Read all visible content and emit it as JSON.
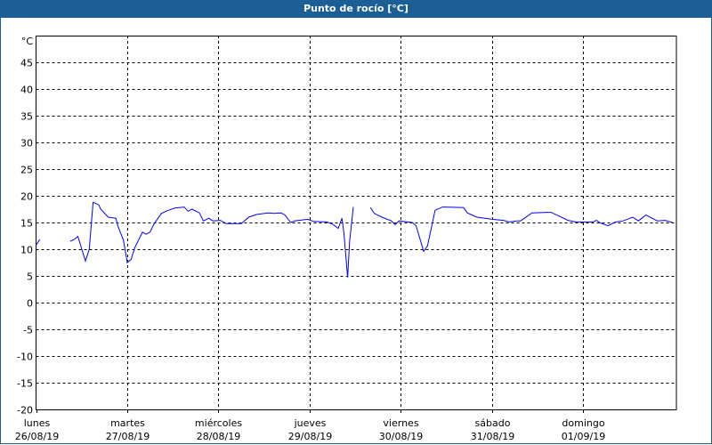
{
  "window": {
    "title": "Punto de rocío [°C]"
  },
  "colors": {
    "titlebar": "#1c5f97",
    "series": "#0000ff",
    "grid": "#000000"
  },
  "chart_data": {
    "type": "line",
    "title": "Punto de rocío [°C]",
    "ylabel": "°C",
    "ylim": [
      -20,
      50
    ],
    "yticks": [
      -20,
      -15,
      -10,
      -5,
      0,
      5,
      10,
      15,
      20,
      25,
      30,
      35,
      40,
      45
    ],
    "xlim": [
      "2019-08-26T00:00",
      "2019-09-02T00:30"
    ],
    "grid": true,
    "xticks": [
      {
        "day": "lunes",
        "date": "26/08/19",
        "at": "2019-08-26T00:00"
      },
      {
        "day": "martes",
        "date": "27/08/19",
        "at": "2019-08-27T00:00"
      },
      {
        "day": "miércoles",
        "date": "28/08/19",
        "at": "2019-08-28T00:00"
      },
      {
        "day": "jueves",
        "date": "29/08/19",
        "at": "2019-08-29T00:00"
      },
      {
        "day": "viernes",
        "date": "30/08/19",
        "at": "2019-08-30T00:00"
      },
      {
        "day": "sábado",
        "date": "31/08/19",
        "at": "2019-08-31T00:00"
      },
      {
        "day": "domingo",
        "date": "01/09/19",
        "at": "2019-09-01T00:00"
      }
    ],
    "series": [
      {
        "segments": [
          [
            [
              "2019-08-26T00:00",
              10.8
            ],
            [
              "2019-08-26T01:00",
              11.8
            ]
          ],
          [
            [
              "2019-08-26T09:00",
              11.5
            ],
            [
              "2019-08-26T10:00",
              11.8
            ],
            [
              "2019-08-26T11:00",
              12.4
            ],
            [
              "2019-08-26T13:00",
              7.8
            ],
            [
              "2019-08-26T14:00",
              10
            ],
            [
              "2019-08-26T15:00",
              18.8
            ],
            [
              "2019-08-26T16:30",
              18.3
            ],
            [
              "2019-08-26T17:00",
              17.5
            ],
            [
              "2019-08-26T19:00",
              16
            ],
            [
              "2019-08-26T21:00",
              15.8
            ],
            [
              "2019-08-26T21:30",
              14.4
            ],
            [
              "2019-08-26T23:00",
              11.7
            ],
            [
              "2019-08-27T00:00",
              7.5
            ],
            [
              "2019-08-27T01:00",
              8.1
            ],
            [
              "2019-08-27T02:00",
              10.3
            ],
            [
              "2019-08-27T04:00",
              13.2
            ],
            [
              "2019-08-27T05:00",
              12.8
            ],
            [
              "2019-08-27T06:00",
              13.2
            ],
            [
              "2019-08-27T07:00",
              14.7
            ],
            [
              "2019-08-27T09:00",
              16.7
            ],
            [
              "2019-08-27T10:30",
              17.2
            ],
            [
              "2019-08-27T12:30",
              17.7
            ],
            [
              "2019-08-27T15:00",
              17.9
            ],
            [
              "2019-08-27T16:00",
              17.1
            ],
            [
              "2019-08-27T17:00",
              17.5
            ],
            [
              "2019-08-27T19:00",
              16.8
            ],
            [
              "2019-08-27T20:00",
              15.3
            ],
            [
              "2019-08-27T21:30",
              15.8
            ],
            [
              "2019-08-27T22:30",
              15.3
            ],
            [
              "2019-08-28T00:30",
              15.4
            ],
            [
              "2019-08-28T02:00",
              14.8
            ],
            [
              "2019-08-28T04:00",
              14.8
            ],
            [
              "2019-08-28T06:00",
              14.8
            ],
            [
              "2019-08-28T08:00",
              16
            ],
            [
              "2019-08-28T10:00",
              16.5
            ],
            [
              "2019-08-28T13:00",
              16.8
            ],
            [
              "2019-08-28T14:30",
              16.7
            ],
            [
              "2019-08-28T16:30",
              16.8
            ],
            [
              "2019-08-28T17:30",
              16.4
            ],
            [
              "2019-08-28T19:00",
              15
            ],
            [
              "2019-08-28T20:00",
              15.3
            ],
            [
              "2019-08-28T23:30",
              15.6
            ],
            [
              "2019-08-29T01:00",
              15.2
            ],
            [
              "2019-08-29T04:30",
              15.1
            ],
            [
              "2019-08-29T06:00",
              14.7
            ],
            [
              "2019-08-29T07:30",
              13.9
            ],
            [
              "2019-08-29T08:30",
              15.8
            ],
            [
              "2019-08-29T09:00",
              13.1
            ],
            [
              "2019-08-29T10:00",
              4.7
            ],
            [
              "2019-08-29T10:30",
              11.4
            ],
            [
              "2019-08-29T11:30",
              17.9
            ]
          ],
          [
            [
              "2019-08-29T16:00",
              17.8
            ],
            [
              "2019-08-29T17:00",
              16.7
            ],
            [
              "2019-08-29T19:00",
              16
            ],
            [
              "2019-08-29T21:30",
              15.3
            ],
            [
              "2019-08-29T22:30",
              14.6
            ],
            [
              "2019-08-29T23:30",
              15.3
            ],
            [
              "2019-08-30T03:00",
              15
            ],
            [
              "2019-08-30T04:00",
              14.4
            ],
            [
              "2019-08-30T06:00",
              9.6
            ],
            [
              "2019-08-30T07:00",
              10.6
            ],
            [
              "2019-08-30T09:00",
              17.3
            ],
            [
              "2019-08-30T11:00",
              17.9
            ],
            [
              "2019-08-30T16:30",
              17.8
            ],
            [
              "2019-08-30T17:30",
              16.8
            ],
            [
              "2019-08-30T20:00",
              16
            ],
            [
              "2019-08-31T00:00",
              15.6
            ],
            [
              "2019-08-31T03:00",
              15.4
            ],
            [
              "2019-08-31T04:30",
              15.1
            ],
            [
              "2019-08-31T06:30",
              15.3
            ],
            [
              "2019-08-31T07:30",
              15.3
            ],
            [
              "2019-08-31T10:30",
              16.8
            ],
            [
              "2019-08-31T14:30",
              16.9
            ],
            [
              "2019-08-31T15:30",
              16.9
            ],
            [
              "2019-08-31T17:00",
              16.4
            ],
            [
              "2019-08-31T20:00",
              15.4
            ],
            [
              "2019-08-31T22:00",
              15.1
            ],
            [
              "2019-09-01T02:30",
              15.1
            ],
            [
              "2019-09-01T03:30",
              15.4
            ],
            [
              "2019-09-01T04:30",
              14.9
            ],
            [
              "2019-09-01T06:30",
              14.4
            ],
            [
              "2019-09-01T08:30",
              15.1
            ],
            [
              "2019-09-01T10:30",
              15.3
            ],
            [
              "2019-09-01T13:00",
              16
            ],
            [
              "2019-09-01T14:30",
              15.3
            ],
            [
              "2019-09-01T16:30",
              16.4
            ],
            [
              "2019-09-01T19:30",
              15.3
            ],
            [
              "2019-09-01T21:30",
              15.4
            ],
            [
              "2019-09-01T23:30",
              15
            ]
          ]
        ]
      }
    ]
  }
}
